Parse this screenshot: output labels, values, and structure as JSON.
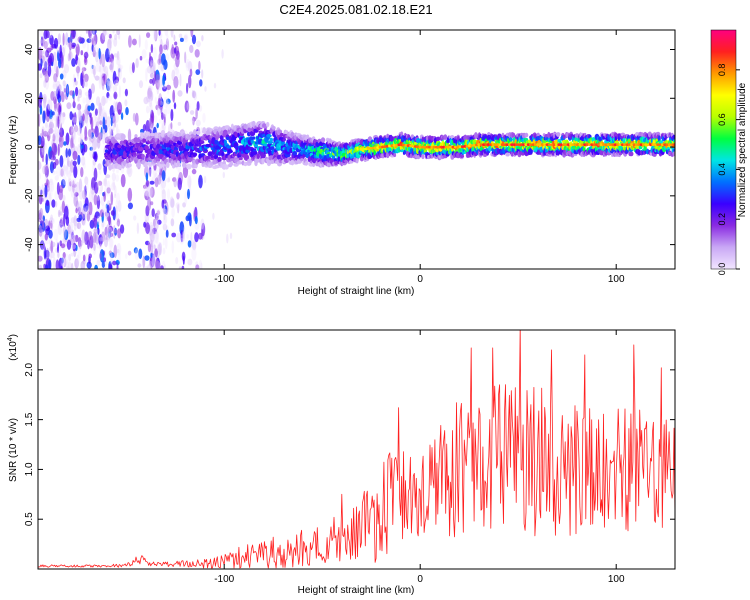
{
  "title": "C2E4.2025.081.02.18.E21",
  "chart_data": [
    {
      "type": "heatmap",
      "xlabel": "Height of straight line (km)",
      "ylabel": "Frequency (Hz)",
      "xlim": [
        -195,
        130
      ],
      "ylim": [
        -50,
        48
      ],
      "x_ticks": [
        -100,
        0,
        100
      ],
      "y_ticks": [
        -40,
        -20,
        0,
        20,
        40
      ],
      "colorbar": {
        "label": "Normalized spectral amplitude",
        "range": [
          0,
          0.96
        ],
        "ticks": [
          0.0,
          0.2,
          0.4,
          0.6,
          0.8
        ],
        "colormap": [
          "#f2e6ff",
          "#c9a8f5",
          "#8a2be2",
          "#3a00ff",
          "#0070ff",
          "#00e5e5",
          "#00ff40",
          "#b8ff00",
          "#ffff00",
          "#ff9900",
          "#ff2020",
          "#ff0080"
        ]
      },
      "noise_band_x": [
        -195,
        -110
      ],
      "quiet_gap_x": [
        -145,
        -140
      ],
      "ridge": {
        "x": [
          -160,
          -140,
          -120,
          -100,
          -90,
          -80,
          -70,
          -60,
          -50,
          -40,
          -30,
          -20,
          -10,
          0,
          10,
          20,
          30,
          40,
          50,
          60,
          70,
          80,
          90,
          100,
          110,
          120,
          130
        ],
        "frequency": [
          -2,
          -1,
          -1,
          0,
          1,
          2,
          0,
          -1,
          -2,
          -3,
          -1,
          0,
          1,
          0,
          0,
          0,
          1,
          1,
          1,
          1,
          1,
          1,
          1,
          1,
          1,
          1,
          1
        ],
        "peak_amplitude": [
          0.3,
          0.3,
          0.35,
          0.4,
          0.45,
          0.5,
          0.45,
          0.45,
          0.55,
          0.7,
          0.75,
          0.8,
          0.85,
          0.85,
          0.85,
          0.85,
          0.85,
          0.85,
          0.85,
          0.85,
          0.85,
          0.85,
          0.85,
          0.85,
          0.85,
          0.85,
          0.85
        ],
        "half_width_hz": [
          5,
          5,
          5,
          6,
          6,
          6,
          5,
          4,
          4,
          3,
          3,
          3,
          3,
          3,
          3,
          3,
          3,
          3,
          3,
          3,
          3,
          3,
          3,
          3,
          3,
          3,
          3
        ]
      }
    },
    {
      "type": "line",
      "xlabel": "Height of straight line (km)",
      "ylabel": "SNR (10 * v/v)",
      "scale_label": "(x10",
      "scale_exp": "4",
      "scale_close": ")",
      "xlim": [
        -195,
        130
      ],
      "ylim": [
        0,
        2.4
      ],
      "x_ticks": [
        -100,
        0,
        100
      ],
      "y_ticks": [
        0.5,
        1.0,
        1.5,
        2.0
      ],
      "y_tick_labels": [
        "0.5",
        "1.0",
        "1.5",
        "2.0"
      ],
      "line_color": "#ff2020",
      "envelope": {
        "x": [
          -195,
          -160,
          -150,
          -145,
          -142,
          -140,
          -138,
          -130,
          -120,
          -110,
          -100,
          -90,
          -80,
          -70,
          -60,
          -50,
          -40,
          -30,
          -20,
          -15,
          -13,
          -10,
          0,
          10,
          20,
          30,
          40,
          50,
          60,
          70,
          80,
          90,
          100,
          110,
          120,
          130
        ],
        "mean": [
          0.03,
          0.03,
          0.04,
          0.06,
          0.1,
          0.08,
          0.05,
          0.05,
          0.05,
          0.05,
          0.08,
          0.12,
          0.15,
          0.18,
          0.22,
          0.25,
          0.3,
          0.38,
          0.55,
          0.65,
          0.75,
          0.65,
          0.8,
          0.9,
          1.0,
          1.05,
          1.1,
          1.15,
          1.1,
          1.05,
          1.0,
          1.0,
          1.0,
          1.0,
          0.95,
          0.95
        ],
        "amplitude": [
          0.01,
          0.01,
          0.02,
          0.03,
          0.05,
          0.03,
          0.02,
          0.02,
          0.03,
          0.04,
          0.06,
          0.1,
          0.12,
          0.14,
          0.16,
          0.18,
          0.22,
          0.3,
          0.4,
          0.5,
          0.5,
          0.45,
          0.5,
          0.55,
          0.6,
          0.6,
          0.65,
          0.7,
          0.65,
          0.6,
          0.55,
          0.55,
          0.55,
          0.55,
          0.5,
          0.5
        ]
      },
      "peaks": [
        {
          "x": -145,
          "y": 0.12
        },
        {
          "x": -40,
          "y": 0.75
        },
        {
          "x": -13,
          "y": 1.1
        },
        {
          "x": -11,
          "y": 1.62
        },
        {
          "x": 26,
          "y": 2.22
        },
        {
          "x": 37,
          "y": 2.22
        },
        {
          "x": 51,
          "y": 2.45
        },
        {
          "x": 67,
          "y": 2.2
        },
        {
          "x": 84,
          "y": 2.15
        },
        {
          "x": 109,
          "y": 2.25
        },
        {
          "x": 123,
          "y": 2.02
        }
      ]
    }
  ]
}
